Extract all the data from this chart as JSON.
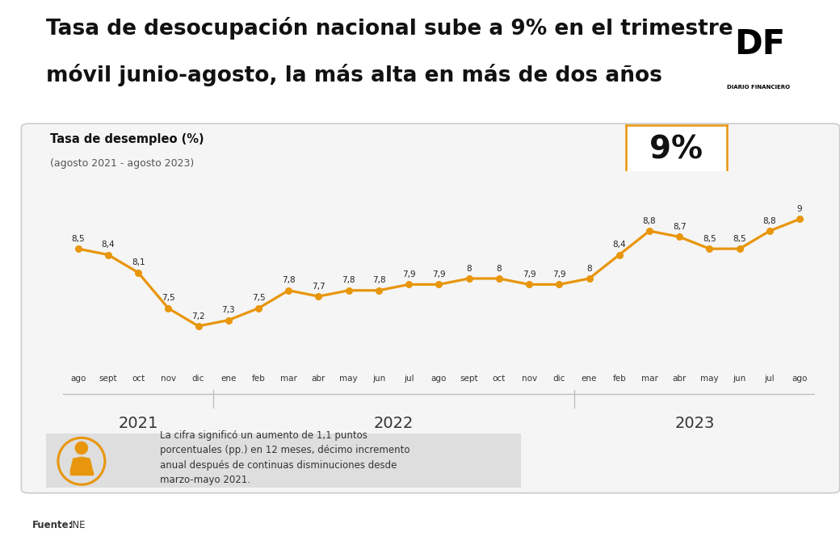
{
  "title_line1": "Tasa de desocupación nacional sube a 9% en el trimestre",
  "title_line2": "móvil junio-agosto, la más alta en más de dos años",
  "chart_title": "Tasa de desempleo (%)",
  "chart_subtitle": "(agosto 2021 - agosto 2023)",
  "highlight_value": "9%",
  "source_bold": "Fuente:",
  "source_normal": " INE",
  "annotation_text": "La cifra significó un aumento de 1,1 puntos\nporcentuales (pp.) en 12 meses, décimo incremento\nanual después de continuas disminuciones desde\nmarzo-mayo 2021.",
  "x_labels": [
    "ago",
    "sept",
    "oct",
    "nov",
    "dic",
    "ene",
    "feb",
    "mar",
    "abr",
    "may",
    "jun",
    "jul",
    "ago",
    "sept",
    "oct",
    "nov",
    "dic",
    "ene",
    "feb",
    "mar",
    "abr",
    "may",
    "jun",
    "jul",
    "ago"
  ],
  "year_labels": [
    "2021",
    "2022",
    "2023"
  ],
  "year_centers": [
    2.0,
    10.5,
    20.5
  ],
  "year_boundaries": [
    4.5,
    16.5
  ],
  "values": [
    8.5,
    8.4,
    8.1,
    7.5,
    7.2,
    7.3,
    7.5,
    7.8,
    7.7,
    7.8,
    7.8,
    7.9,
    7.9,
    8.0,
    8.0,
    7.9,
    7.9,
    8.0,
    8.4,
    8.8,
    8.7,
    8.5,
    8.5,
    8.8,
    9.0
  ],
  "line_color": "#E8960C",
  "marker_color": "#E8960C",
  "outer_bg": "#FFFFFF",
  "panel_bg": "#FFFFFF",
  "title_bar_color": "#E8960C",
  "highlight_box_color": "#E8960C",
  "annotation_bg": "#DEDEDE",
  "value_label_color": "#222222",
  "df_logo_bg": "#E8960C",
  "ylim_min": 6.5,
  "ylim_max": 9.8
}
